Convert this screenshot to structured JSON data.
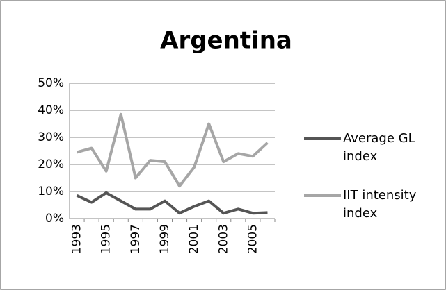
{
  "chart_data": {
    "type": "line",
    "title": "Argentina",
    "categories": [
      "1993",
      null,
      "1995",
      null,
      "1997",
      null,
      "1999",
      null,
      "2001",
      null,
      "2003",
      null,
      "2005",
      null
    ],
    "series": [
      {
        "name": "Average GL index",
        "color": "#555555",
        "values": [
          8.5,
          6,
          9.5,
          6.5,
          3.5,
          3.5,
          6.5,
          2,
          4.5,
          6.5,
          2,
          3.5,
          2,
          2.2
        ]
      },
      {
        "name": "IIT intensity index",
        "color": "#a6a6a6",
        "values": [
          24.5,
          26,
          17.5,
          38.5,
          15,
          21.5,
          21,
          12,
          19,
          35,
          21,
          24,
          23,
          28
        ]
      }
    ],
    "ylim": [
      0,
      50
    ],
    "yticks": [
      {
        "value": 0,
        "label": "0%"
      },
      {
        "value": 10,
        "label": "10%"
      },
      {
        "value": 20,
        "label": "20%"
      },
      {
        "value": 30,
        "label": "30%"
      },
      {
        "value": 40,
        "label": "40%"
      },
      {
        "value": 50,
        "label": "50%"
      }
    ],
    "grid": true,
    "legend": "right"
  }
}
